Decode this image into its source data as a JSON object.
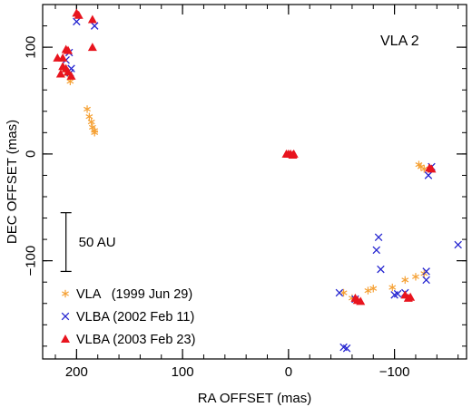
{
  "chart_data": {
    "type": "scatter",
    "title": "",
    "annotation": "VLA 2",
    "xlabel": "RA OFFSET (mas)",
    "ylabel": "DEC OFFSET (mas)",
    "xlim": [
      232,
      -168
    ],
    "ylim": [
      -192,
      140
    ],
    "x_ticks": [
      200,
      100,
      0,
      -100
    ],
    "x_tick_labels": [
      "200",
      "100",
      "0",
      "−100"
    ],
    "y_ticks": [
      100,
      0,
      -100
    ],
    "y_tick_labels": [
      "100",
      "0",
      "−100"
    ],
    "x_minor_step": 20,
    "y_minor_step": 20,
    "grid": false,
    "legend_position": "bottom-left",
    "scale_bar": {
      "label": "50 AU",
      "y_from": -55,
      "y_to": -110,
      "x": 210
    },
    "series": [
      {
        "name": "VLA   (1999 Jun 29)",
        "marker": "asterisk",
        "color": "#F5A033",
        "points": [
          [
            212,
            80
          ],
          [
            208,
            75
          ],
          [
            206,
            68
          ],
          [
            190,
            42
          ],
          [
            188,
            35
          ],
          [
            186,
            30
          ],
          [
            185,
            25
          ],
          [
            183,
            20
          ],
          [
            183,
            22
          ],
          [
            -123,
            -10
          ],
          [
            -125,
            -12
          ],
          [
            -128,
            -14
          ],
          [
            -52,
            -130
          ],
          [
            -60,
            -135
          ],
          [
            -75,
            -128
          ],
          [
            -80,
            -126
          ],
          [
            -98,
            -125
          ],
          [
            -110,
            -118
          ],
          [
            -120,
            -115
          ],
          [
            -128,
            -112
          ]
        ]
      },
      {
        "name": "VLBA (2002 Feb 11)",
        "marker": "cross",
        "color": "#2424D0",
        "points": [
          [
            200,
            124
          ],
          [
            183,
            120
          ],
          [
            207,
            95
          ],
          [
            210,
            88
          ],
          [
            205,
            80
          ],
          [
            206,
            76
          ],
          [
            -135,
            -12
          ],
          [
            -132,
            -20
          ],
          [
            -48,
            -130
          ],
          [
            -63,
            -136
          ],
          [
            -83,
            -90
          ],
          [
            -85,
            -78
          ],
          [
            -87,
            -108
          ],
          [
            -100,
            -132
          ],
          [
            -103,
            -131
          ],
          [
            -110,
            -130
          ],
          [
            -130,
            -110
          ],
          [
            -130,
            -118
          ],
          [
            -160,
            -85
          ],
          [
            -52,
            -181
          ],
          [
            -55,
            -182
          ]
        ]
      },
      {
        "name": "VLBA (2003 Feb 23)",
        "marker": "triangle",
        "color": "#E8141E",
        "points": [
          [
            200,
            132
          ],
          [
            198,
            130
          ],
          [
            185,
            126
          ],
          [
            185,
            100
          ],
          [
            210,
            98
          ],
          [
            208,
            97
          ],
          [
            213,
            90
          ],
          [
            218,
            90
          ],
          [
            213,
            82
          ],
          [
            210,
            80
          ],
          [
            215,
            75
          ],
          [
            208,
            77
          ],
          [
            205,
            73
          ],
          [
            2,
            0
          ],
          [
            0,
            0
          ],
          [
            -2,
            0
          ],
          [
            -4,
            -1
          ],
          [
            -5,
            0
          ],
          [
            -133,
            -13
          ],
          [
            -135,
            -14
          ],
          [
            -63,
            -135
          ],
          [
            -65,
            -137
          ],
          [
            -68,
            -138
          ],
          [
            -110,
            -132
          ],
          [
            -113,
            -135
          ],
          [
            -115,
            -134
          ]
        ]
      }
    ]
  }
}
